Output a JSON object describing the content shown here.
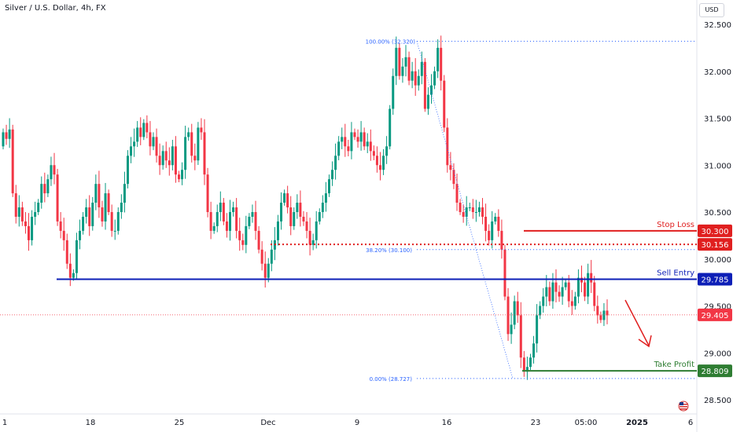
{
  "header": {
    "title": "Silver / U.S. Dollar, 4h, FX",
    "currency_button": "USD"
  },
  "chart_data": {
    "type": "candlestick",
    "title": "Silver / U.S. Dollar, 4h, FX",
    "ylim": [
      28.45,
      32.55
    ],
    "y_ticks": [
      "32.500",
      "32.000",
      "31.500",
      "31.000",
      "30.500",
      "30.000",
      "29.500",
      "29.000",
      "28.500"
    ],
    "y_tick_values": [
      32.5,
      32.0,
      31.5,
      31.0,
      30.5,
      30.0,
      29.5,
      29.0,
      28.5
    ],
    "x_ticks": [
      {
        "label": "1",
        "bold": false
      },
      {
        "label": "18",
        "bold": false
      },
      {
        "label": "25",
        "bold": false
      },
      {
        "label": "Dec",
        "bold": false
      },
      {
        "label": "9",
        "bold": false
      },
      {
        "label": "16",
        "bold": false
      },
      {
        "label": "23",
        "bold": false
      },
      {
        "label": "05:00",
        "bold": false
      },
      {
        "label": "2025",
        "bold": true
      },
      {
        "label": "6",
        "bold": false
      }
    ],
    "colors": {
      "up": "#089981",
      "down": "#f23645",
      "blue": "#0d1fb7",
      "red": "#f23645",
      "green": "#2e7d32",
      "fib": "#2962ff"
    },
    "levels": [
      {
        "name": "Stop Loss",
        "value": 30.3,
        "tag": "30.300",
        "color": "#e01f1f"
      },
      {
        "name": "",
        "value": 30.156,
        "tag": "30.156",
        "color": "#e01f1f"
      },
      {
        "name": "Sell Entry",
        "value": 29.785,
        "tag": "29.785",
        "color": "#0d1fb7"
      },
      {
        "name": "",
        "value": 29.405,
        "tag": "29.405",
        "color": "#f23645"
      },
      {
        "name": "Take Profit",
        "value": 28.809,
        "tag": "28.809",
        "color": "#2e7d32"
      }
    ],
    "fib_levels": [
      {
        "label": "100.00% (32.320)",
        "value": 32.32
      },
      {
        "label": "38.20% (30.100)",
        "value": 30.1
      },
      {
        "label": "0.00% (28.727)",
        "value": 28.727
      }
    ],
    "closes": [
      31.35,
      31.28,
      31.38,
      30.7,
      30.45,
      30.55,
      30.4,
      30.35,
      30.2,
      30.45,
      30.5,
      30.6,
      30.8,
      30.7,
      30.85,
      31.0,
      30.9,
      30.4,
      30.3,
      30.2,
      29.95,
      29.8,
      29.85,
      30.2,
      30.3,
      30.45,
      30.55,
      30.35,
      30.6,
      30.8,
      30.55,
      30.4,
      30.7,
      30.5,
      30.3,
      30.3,
      30.5,
      30.6,
      30.8,
      31.1,
      31.2,
      31.25,
      31.4,
      31.3,
      31.45,
      31.35,
      31.2,
      31.3,
      31.1,
      31.0,
      31.15,
      31.05,
      31.0,
      31.2,
      30.9,
      30.85,
      30.95,
      31.3,
      31.35,
      31.1,
      31.05,
      31.4,
      31.35,
      30.9,
      30.5,
      30.3,
      30.35,
      30.5,
      30.6,
      30.4,
      30.3,
      30.5,
      30.55,
      30.3,
      30.2,
      30.15,
      30.35,
      30.45,
      30.5,
      30.3,
      30.1,
      29.95,
      29.8,
      29.95,
      30.1,
      30.2,
      30.4,
      30.6,
      30.7,
      30.55,
      30.35,
      30.5,
      30.6,
      30.45,
      30.4,
      30.3,
      30.15,
      30.2,
      30.4,
      30.5,
      30.6,
      30.7,
      30.85,
      30.95,
      31.1,
      31.25,
      31.3,
      31.2,
      31.15,
      31.35,
      31.3,
      31.25,
      31.35,
      31.2,
      31.25,
      31.15,
      31.1,
      31.0,
      30.95,
      31.1,
      31.2,
      31.6,
      31.95,
      32.25,
      31.95,
      32.05,
      32.15,
      31.9,
      32.0,
      31.85,
      31.95,
      32.1,
      31.6,
      31.75,
      31.85,
      32.0,
      32.25,
      31.9,
      31.4,
      31.0,
      30.95,
      30.8,
      30.6,
      30.5,
      30.45,
      30.55,
      30.55,
      30.5,
      30.5,
      30.55,
      30.45,
      30.3,
      30.2,
      30.4,
      30.45,
      30.3,
      30.1,
      29.6,
      29.2,
      29.3,
      29.55,
      29.4,
      28.95,
      28.8,
      28.85,
      28.95,
      29.1,
      29.4,
      29.5,
      29.6,
      29.7,
      29.55,
      29.75,
      29.65,
      29.6,
      29.7,
      29.75,
      29.55,
      29.5,
      29.6,
      29.8,
      29.75,
      29.6,
      29.85,
      29.75,
      29.5,
      29.4,
      29.35,
      29.45,
      29.4
    ]
  }
}
